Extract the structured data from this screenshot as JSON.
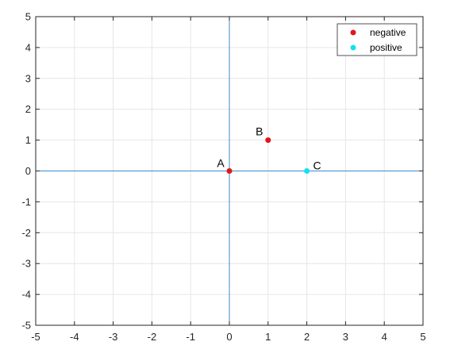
{
  "chart_data": {
    "type": "scatter",
    "xlim": [
      -5,
      5
    ],
    "ylim": [
      -5,
      5
    ],
    "xticks": [
      -5,
      -4,
      -3,
      -2,
      -1,
      0,
      1,
      2,
      3,
      4,
      5
    ],
    "yticks": [
      -5,
      -4,
      -3,
      -2,
      -1,
      0,
      1,
      2,
      3,
      4,
      5
    ],
    "grid": true,
    "reference_lines": {
      "x": 0,
      "y": 0,
      "color": "#3b8bd0"
    },
    "series": [
      {
        "name": "negative",
        "color": "#e3151a",
        "points": [
          {
            "label": "A",
            "x": 0,
            "y": 0
          },
          {
            "label": "B",
            "x": 1,
            "y": 1
          }
        ]
      },
      {
        "name": "positive",
        "color": "#13e0f0",
        "points": [
          {
            "label": "C",
            "x": 2,
            "y": 0
          }
        ]
      }
    ],
    "legend": {
      "position": "top-right"
    }
  }
}
